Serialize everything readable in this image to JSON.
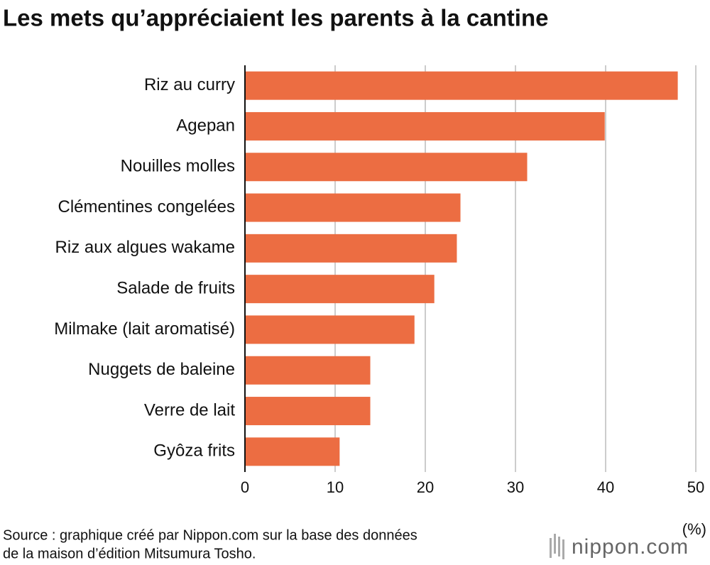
{
  "chart_data": {
    "type": "bar",
    "orientation": "horizontal",
    "title": "Les mets qu’appréciaient les parents à la cantine",
    "categories": [
      "Riz au curry",
      "Agepan",
      "Nouilles molles",
      "Clémentines congelées",
      "Riz aux algues wakame",
      "Salade de fruits",
      "Milmake (lait aromatisé)",
      "Nuggets de baleine",
      "Verre de lait",
      "Gyôza frits"
    ],
    "values": [
      48,
      39.9,
      31.3,
      23.9,
      23.5,
      21,
      18.8,
      13.9,
      13.9,
      10.5
    ],
    "color": "#ec6d42",
    "xlim": [
      0,
      50
    ],
    "xticks": [
      0,
      10,
      20,
      30,
      40,
      50
    ],
    "grid": true,
    "x_label": "(%)",
    "source_lines": [
      "Source : graphique créé par Nippon.com sur la base des données",
      "de la maison d’édition Mitsumura Tosho."
    ],
    "logo": "nippon.com"
  }
}
